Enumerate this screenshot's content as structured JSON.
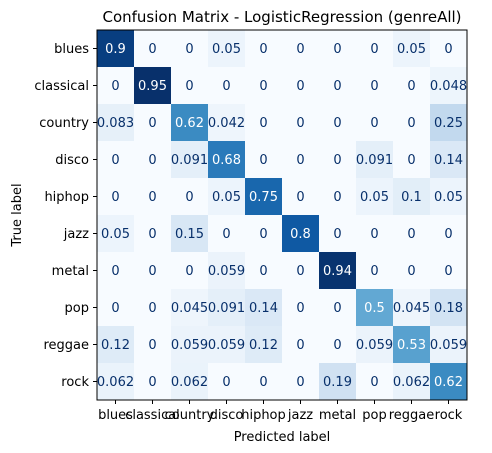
{
  "chart_data": {
    "type": "heatmap",
    "title": "Confusion Matrix - LogisticRegression (genreAll)",
    "xlabel": "Predicted label",
    "ylabel": "True label",
    "x_categories": [
      "blues",
      "classical",
      "country",
      "disco",
      "hiphop",
      "jazz",
      "metal",
      "pop",
      "reggae",
      "rock"
    ],
    "y_categories": [
      "blues",
      "classical",
      "country",
      "disco",
      "hiphop",
      "jazz",
      "metal",
      "pop",
      "reggae",
      "rock"
    ],
    "colormap": "Blues",
    "values": [
      [
        0.9,
        0,
        0,
        0.05,
        0,
        0,
        0,
        0,
        0.05,
        0
      ],
      [
        0,
        0.95,
        0,
        0,
        0,
        0,
        0,
        0,
        0,
        0.048
      ],
      [
        0.083,
        0,
        0.62,
        0.042,
        0,
        0,
        0,
        0,
        0,
        0.25
      ],
      [
        0,
        0,
        0.091,
        0.68,
        0,
        0,
        0,
        0.091,
        0,
        0.14
      ],
      [
        0,
        0,
        0,
        0.05,
        0.75,
        0,
        0,
        0.05,
        0.1,
        0.05
      ],
      [
        0.05,
        0,
        0.15,
        0,
        0,
        0.8,
        0,
        0,
        0,
        0
      ],
      [
        0,
        0,
        0,
        0.059,
        0,
        0,
        0.94,
        0,
        0,
        0
      ],
      [
        0,
        0,
        0.045,
        0.091,
        0.14,
        0,
        0,
        0.5,
        0.045,
        0.18
      ],
      [
        0.12,
        0,
        0.059,
        0.059,
        0.12,
        0,
        0,
        0.059,
        0.53,
        0.059
      ],
      [
        0.062,
        0,
        0.062,
        0,
        0,
        0,
        0.19,
        0,
        0.062,
        0.62
      ]
    ],
    "value_labels": [
      [
        "0.9",
        "0",
        "0",
        "0.05",
        "0",
        "0",
        "0",
        "0",
        "0.05",
        "0"
      ],
      [
        "0",
        "0.95",
        "0",
        "0",
        "0",
        "0",
        "0",
        "0",
        "0",
        "0.048"
      ],
      [
        "0.083",
        "0",
        "0.62",
        "0.042",
        "0",
        "0",
        "0",
        "0",
        "0",
        "0.25"
      ],
      [
        "0",
        "0",
        "0.091",
        "0.68",
        "0",
        "0",
        "0",
        "0.091",
        "0",
        "0.14"
      ],
      [
        "0",
        "0",
        "0",
        "0.05",
        "0.75",
        "0",
        "0",
        "0.05",
        "0.1",
        "0.05"
      ],
      [
        "0.05",
        "0",
        "0.15",
        "0",
        "0",
        "0.8",
        "0",
        "0",
        "0",
        "0"
      ],
      [
        "0",
        "0",
        "0",
        "0.059",
        "0",
        "0",
        "0.94",
        "0",
        "0",
        "0"
      ],
      [
        "0",
        "0",
        "0.045",
        "0.091",
        "0.14",
        "0",
        "0",
        "0.5",
        "0.045",
        "0.18"
      ],
      [
        "0.12",
        "0",
        "0.059",
        "0.059",
        "0.12",
        "0",
        "0",
        "0.059",
        "0.53",
        "0.059"
      ],
      [
        "0.062",
        "0",
        "0.062",
        "0",
        "0",
        "0",
        "0.19",
        "0",
        "0.062",
        "0.62"
      ]
    ],
    "vmin": 0,
    "vmax": 0.95,
    "grid": false,
    "colorbar": false
  }
}
